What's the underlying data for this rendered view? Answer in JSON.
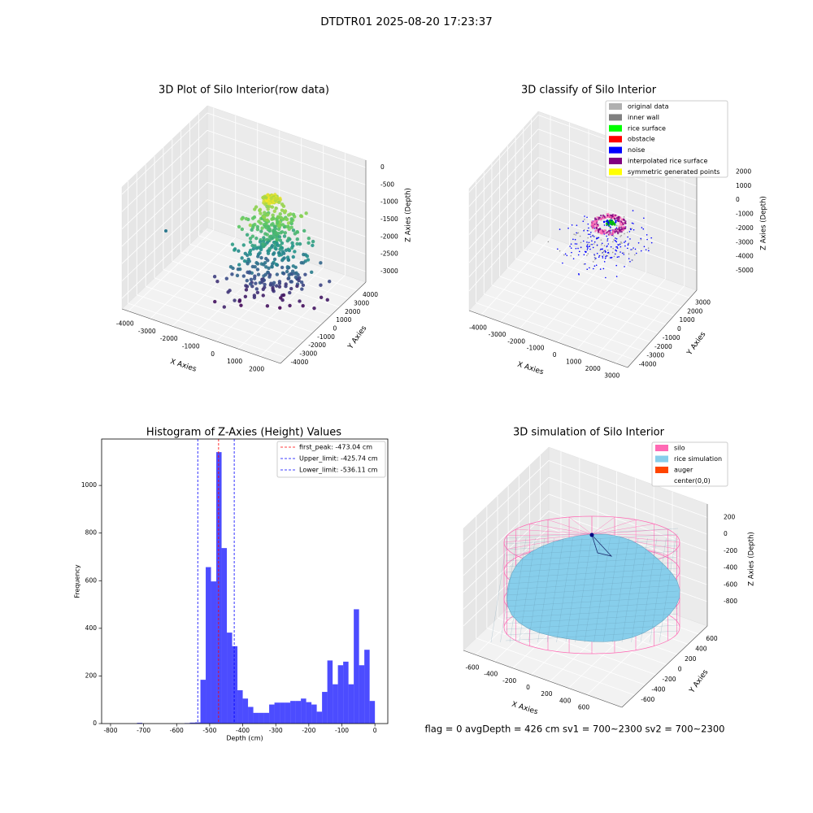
{
  "title": "DTDTR01 2025-08-20 17:23:37",
  "footer": "flag = 0     avgDepth = 426 cm  sv1 = 700~2300  sv2 = 700~2300",
  "chart_data": [
    {
      "type": "scatter3d",
      "title": "3D Plot of Silo Interior(row data)",
      "xlabel": "X Axies",
      "ylabel": "Y Axies",
      "zlabel": "Z Axies (Depth)",
      "xlim": [
        -4289,
        2940
      ],
      "ylim": [
        -4675,
        4964
      ],
      "zlim": [
        -3306,
        211
      ],
      "xticks": [
        -4000,
        -3000,
        -2000,
        -1000,
        0,
        1000,
        2000
      ],
      "yticks": [
        -4000,
        -3000,
        -2000,
        -1000,
        0,
        1000,
        2000,
        3000,
        4000
      ],
      "zticks": [
        0,
        -500,
        -1000,
        -1500,
        -2000,
        -2500,
        -3000
      ]
    },
    {
      "type": "classify3d",
      "title": "3D classify of Silo Interior",
      "xlabel": "X Axies",
      "ylabel": "Y Axies",
      "zlabel": "Z Axies (Depth)",
      "xlim": [
        -4638,
        3646
      ],
      "ylim": [
        -4875,
        3875
      ],
      "zlim": [
        -6383,
        2259
      ],
      "xticks": [
        -4000,
        -3000,
        -2000,
        -1000,
        0,
        1000,
        2000,
        3000
      ],
      "yticks": [
        -4000,
        -3000,
        -2000,
        -1000,
        0,
        1000,
        2000,
        3000
      ],
      "zticks": [
        2000,
        1000,
        0,
        -1000,
        -2000,
        -3000,
        -4000,
        -5000
      ],
      "legend": "upper right",
      "series": [
        {
          "name": "original data",
          "color": "#b0b0b0"
        },
        {
          "name": "inner wall",
          "color": "#808080"
        },
        {
          "name": "rice surface",
          "color": "#00ff00"
        },
        {
          "name": "obstacle",
          "color": "#ff0000"
        },
        {
          "name": "noise",
          "color": "#0000ff"
        },
        {
          "name": "interpolated rice surface",
          "color": "#800080"
        },
        {
          "name": "symmetric generated points",
          "color": "#ffff00"
        }
      ]
    },
    {
      "type": "histogram",
      "title": "Histogram of Z-Axies (Height) Values",
      "xlabel": "Depth (cm)",
      "ylabel": "Frequency",
      "color": "#0000ff",
      "bins": [
        -800,
        -784,
        -768,
        -752,
        -736,
        -720,
        -704,
        -688,
        -672,
        -656,
        -640,
        -624,
        -608,
        -592,
        -576,
        -560,
        -544,
        -528,
        -512,
        -496,
        -480,
        -464,
        -448,
        -432,
        -416,
        -400,
        -384,
        -368,
        -352,
        -336,
        -320,
        -304,
        -288,
        -272,
        -256,
        -240,
        -224,
        -208,
        -192,
        -176,
        -160,
        -144,
        -128,
        -112,
        -96,
        -80,
        -64,
        -48,
        -32,
        -16,
        0
      ],
      "values": [
        0,
        0,
        0,
        0,
        0,
        3,
        0,
        0,
        0,
        0,
        0,
        0,
        0,
        0,
        2,
        4,
        5,
        184,
        657,
        597,
        1140,
        737,
        382,
        325,
        140,
        105,
        70,
        45,
        45,
        45,
        80,
        88,
        88,
        88,
        95,
        95,
        105,
        90,
        80,
        50,
        133,
        265,
        165,
        245,
        260,
        165,
        480,
        245,
        310,
        95
      ],
      "xlim": [
        -827,
        39
      ],
      "ylim": [
        0,
        1195
      ],
      "xticks": [
        -800,
        -700,
        -600,
        -500,
        -400,
        -300,
        -200,
        -100,
        0
      ],
      "yticks": [
        0,
        200,
        400,
        600,
        800,
        1000
      ],
      "legend": "upper right",
      "vlines": [
        {
          "name": "first_peak: -473.04 cm",
          "value": -473.04,
          "color": "#ff0000"
        },
        {
          "name": "Upper_limit: -425.74 cm",
          "value": -425.74,
          "color": "#0000ff"
        },
        {
          "name": "Lower_limit: -536.11 cm",
          "value": -536.11,
          "color": "#0000ff"
        }
      ]
    },
    {
      "type": "surface3d",
      "title": "3D simulation of Silo Interior",
      "xlabel": "X Axies",
      "ylabel": "Y Axies",
      "zlabel": "Z Axies (Depth)",
      "xlim": [
        -731,
        976
      ],
      "ylim": [
        -840,
        760
      ],
      "zlim": [
        -1090,
        359
      ],
      "xticks": [
        -600,
        -400,
        -200,
        0,
        200,
        400,
        600
      ],
      "yticks": [
        -600,
        -400,
        -200,
        0,
        200,
        400,
        600
      ],
      "zticks": [
        200,
        0,
        -200,
        -400,
        -600,
        -800
      ],
      "legend": "upper right",
      "series": [
        {
          "name": "silo",
          "color": "#ff69b4"
        },
        {
          "name": "rice simulation",
          "color": "#87ceeb"
        },
        {
          "name": "auger",
          "color": "#ff4500"
        },
        {
          "name": "center(0,0)",
          "color": "#ffffff"
        }
      ]
    }
  ]
}
